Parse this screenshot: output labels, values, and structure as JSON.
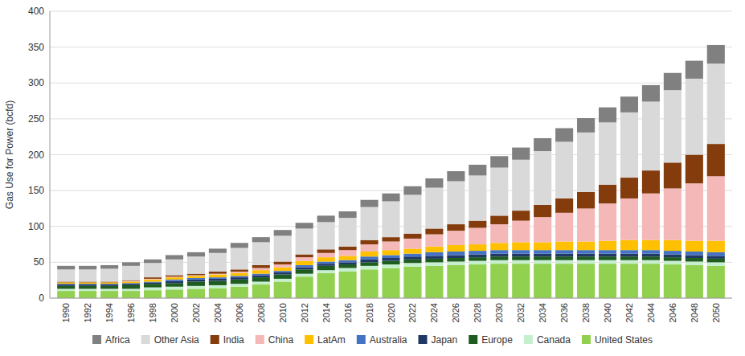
{
  "chart_data": {
    "type": "bar",
    "stacked": true,
    "y_label": "Gas Use for Power (bcfd)",
    "x": [
      1990,
      1992,
      1994,
      1996,
      1998,
      2000,
      2002,
      2004,
      2006,
      2008,
      2010,
      2012,
      2014,
      2016,
      2018,
      2020,
      2022,
      2024,
      2026,
      2028,
      2030,
      2032,
      2034,
      2036,
      2038,
      2040,
      2042,
      2044,
      2046,
      2048,
      2050
    ],
    "xlim": [
      1988.5,
      2051.5
    ],
    "xticks": [
      1990,
      1992,
      1994,
      1996,
      1998,
      2000,
      2002,
      2004,
      2006,
      2008,
      2010,
      2012,
      2014,
      2016,
      2018,
      2020,
      2022,
      2024,
      2026,
      2028,
      2030,
      2032,
      2034,
      2036,
      2038,
      2040,
      2042,
      2044,
      2046,
      2048,
      2050
    ],
    "ylim": [
      0,
      400
    ],
    "yticks": [
      0,
      50,
      100,
      150,
      200,
      250,
      300,
      350,
      400
    ],
    "grid": true,
    "legend": "bottom",
    "series": [
      {
        "name": "United States",
        "color": "#92d050",
        "values": [
          10,
          10,
          10,
          10,
          11,
          12,
          13,
          14,
          16,
          19,
          23,
          30,
          35,
          37,
          40,
          42,
          44,
          45,
          46,
          47,
          48,
          48,
          48,
          48,
          48,
          48,
          48,
          48,
          47,
          46,
          45
        ]
      },
      {
        "name": "Canada",
        "color": "#c6efce",
        "values": [
          3,
          3,
          3,
          3,
          4,
          4,
          4,
          4,
          4,
          4,
          4,
          4,
          4,
          5,
          5,
          5,
          5,
          5,
          5,
          5,
          5,
          5,
          5,
          5,
          5,
          5,
          5,
          5,
          5,
          5,
          5
        ]
      },
      {
        "name": "Europe",
        "color": "#1f5c1f",
        "values": [
          4,
          4,
          4,
          5,
          5,
          5,
          6,
          6,
          6,
          6,
          6,
          6,
          6,
          5,
          5,
          5,
          5,
          5,
          5,
          5,
          5,
          5,
          5,
          5,
          5,
          5,
          5,
          5,
          5,
          5,
          5
        ]
      },
      {
        "name": "Japan",
        "color": "#1f3864",
        "values": [
          2,
          2,
          2,
          2,
          2,
          3,
          3,
          3,
          3,
          3,
          3,
          3,
          3,
          3,
          4,
          4,
          4,
          4,
          4,
          4,
          4,
          4,
          4,
          4,
          4,
          4,
          4,
          4,
          4,
          4,
          4
        ]
      },
      {
        "name": "Australia",
        "color": "#4472c4",
        "values": [
          1,
          1,
          1,
          1,
          1,
          2,
          2,
          2,
          2,
          2,
          2,
          3,
          3,
          3,
          4,
          4,
          4,
          5,
          5,
          5,
          5,
          5,
          5,
          5,
          5,
          5,
          5,
          5,
          5,
          5,
          5
        ]
      },
      {
        "name": "LatAm",
        "color": "#ffc000",
        "values": [
          2,
          2,
          2,
          2,
          3,
          3,
          3,
          4,
          4,
          5,
          5,
          6,
          6,
          6,
          7,
          7,
          7,
          8,
          9,
          9,
          10,
          11,
          11,
          12,
          12,
          13,
          14,
          14,
          15,
          15,
          16
        ]
      },
      {
        "name": "China",
        "color": "#f4b8b8",
        "values": [
          0,
          0,
          0,
          1,
          1,
          1,
          1,
          1,
          2,
          3,
          4,
          5,
          6,
          8,
          10,
          12,
          14,
          17,
          20,
          23,
          26,
          30,
          35,
          40,
          46,
          52,
          58,
          65,
          72,
          80,
          90
        ]
      },
      {
        "name": "India",
        "color": "#843c0c",
        "values": [
          1,
          1,
          1,
          1,
          2,
          2,
          2,
          3,
          3,
          4,
          4,
          4,
          5,
          5,
          6,
          6,
          7,
          8,
          9,
          10,
          12,
          14,
          17,
          20,
          23,
          26,
          29,
          32,
          36,
          40,
          45
        ]
      },
      {
        "name": "Other Asia",
        "color": "#d9d9d9",
        "values": [
          17,
          17,
          18,
          20,
          20,
          22,
          24,
          26,
          30,
          32,
          36,
          36,
          38,
          40,
          46,
          50,
          54,
          57,
          60,
          63,
          67,
          71,
          75,
          79,
          83,
          87,
          91,
          96,
          101,
          106,
          112
        ]
      },
      {
        "name": "Africa",
        "color": "#808080",
        "values": [
          5,
          5,
          5,
          5,
          5,
          6,
          6,
          6,
          7,
          7,
          8,
          8,
          9,
          9,
          10,
          11,
          12,
          13,
          14,
          15,
          16,
          17,
          18,
          19,
          20,
          21,
          22,
          23,
          24,
          25,
          26
        ]
      }
    ]
  }
}
